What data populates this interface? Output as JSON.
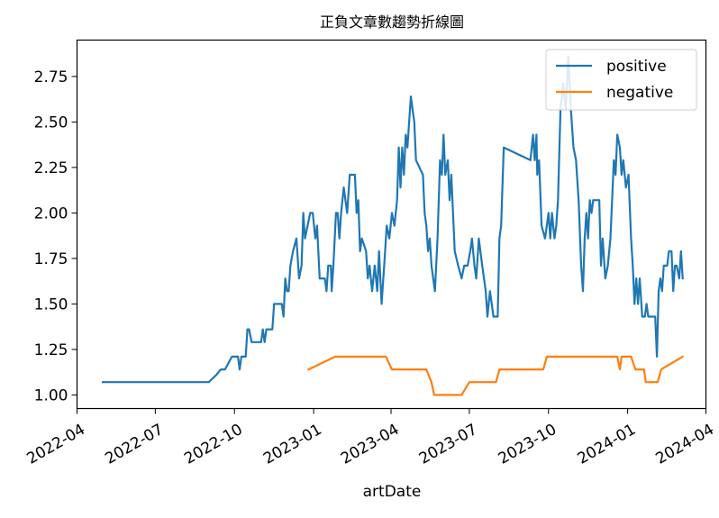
{
  "chart_data": {
    "type": "line",
    "title": "正負文章數趨勢折線圖",
    "xlabel": "artDate",
    "ylabel": "",
    "x_type": "date",
    "xlim": [
      "2022-04-01",
      "2024-04-01"
    ],
    "ylim": [
      0.925,
      2.95
    ],
    "x_ticks": [
      "2022-04-01",
      "2022-07-01",
      "2022-10-01",
      "2023-01-01",
      "2023-04-01",
      "2023-07-01",
      "2023-10-01",
      "2024-01-01",
      "2024-04-01"
    ],
    "x_tick_labels": [
      "2022-04",
      "2022-07",
      "2022-10",
      "2023-01",
      "2023-04",
      "2023-07",
      "2023-10",
      "2024-01",
      "2024-04"
    ],
    "y_ticks": [
      1.0,
      1.25,
      1.5,
      1.75,
      2.0,
      2.25,
      2.5,
      2.75
    ],
    "y_tick_labels": [
      "1.00",
      "1.25",
      "1.50",
      "1.75",
      "2.00",
      "2.25",
      "2.50",
      "2.75"
    ],
    "grid": false,
    "legend_position": "upper right",
    "series": [
      {
        "name": "positive",
        "color": "#1f77b4",
        "points": [
          [
            "2022-05-01",
            1.07
          ],
          [
            "2022-09-01",
            1.07
          ],
          [
            "2022-09-10",
            1.11
          ],
          [
            "2022-09-15",
            1.14
          ],
          [
            "2022-09-20",
            1.14
          ],
          [
            "2022-09-28",
            1.21
          ],
          [
            "2022-10-05",
            1.21
          ],
          [
            "2022-10-07",
            1.14
          ],
          [
            "2022-10-09",
            1.21
          ],
          [
            "2022-10-14",
            1.21
          ],
          [
            "2022-10-16",
            1.36
          ],
          [
            "2022-10-18",
            1.36
          ],
          [
            "2022-10-21",
            1.29
          ],
          [
            "2022-11-01",
            1.29
          ],
          [
            "2022-11-03",
            1.36
          ],
          [
            "2022-11-05",
            1.29
          ],
          [
            "2022-11-07",
            1.36
          ],
          [
            "2022-11-14",
            1.36
          ],
          [
            "2022-11-16",
            1.5
          ],
          [
            "2022-11-25",
            1.5
          ],
          [
            "2022-11-27",
            1.43
          ],
          [
            "2022-11-29",
            1.64
          ],
          [
            "2022-12-01",
            1.57
          ],
          [
            "2022-12-03",
            1.57
          ],
          [
            "2022-12-05",
            1.71
          ],
          [
            "2022-12-08",
            1.79
          ],
          [
            "2022-12-12",
            1.86
          ],
          [
            "2022-12-15",
            1.64
          ],
          [
            "2022-12-18",
            1.71
          ],
          [
            "2022-12-20",
            2.0
          ],
          [
            "2022-12-22",
            1.86
          ],
          [
            "2022-12-25",
            1.93
          ],
          [
            "2022-12-28",
            2.0
          ],
          [
            "2022-12-31",
            2.0
          ],
          [
            "2023-01-03",
            1.86
          ],
          [
            "2023-01-05",
            1.93
          ],
          [
            "2023-01-08",
            1.64
          ],
          [
            "2023-01-14",
            1.64
          ],
          [
            "2023-01-16",
            1.57
          ],
          [
            "2023-01-18",
            1.71
          ],
          [
            "2023-01-21",
            1.71
          ],
          [
            "2023-01-22",
            1.57
          ],
          [
            "2023-01-24",
            1.71
          ],
          [
            "2023-01-27",
            2.0
          ],
          [
            "2023-01-29",
            2.0
          ],
          [
            "2023-01-31",
            1.86
          ],
          [
            "2023-02-02",
            2.0
          ],
          [
            "2023-02-05",
            2.14
          ],
          [
            "2023-02-09",
            2.0
          ],
          [
            "2023-02-12",
            2.21
          ],
          [
            "2023-02-18",
            2.21
          ],
          [
            "2023-02-20",
            2.0
          ],
          [
            "2023-02-22",
            2.07
          ],
          [
            "2023-02-24",
            1.79
          ],
          [
            "2023-02-26",
            1.86
          ],
          [
            "2023-03-03",
            1.79
          ],
          [
            "2023-03-05",
            1.64
          ],
          [
            "2023-03-07",
            1.71
          ],
          [
            "2023-03-10",
            1.57
          ],
          [
            "2023-03-13",
            1.71
          ],
          [
            "2023-03-16",
            1.57
          ],
          [
            "2023-03-18",
            1.79
          ],
          [
            "2023-03-21",
            1.5
          ],
          [
            "2023-03-24",
            1.71
          ],
          [
            "2023-03-27",
            1.93
          ],
          [
            "2023-03-30",
            1.86
          ],
          [
            "2023-04-02",
            2.0
          ],
          [
            "2023-04-05",
            1.93
          ],
          [
            "2023-04-08",
            2.07
          ],
          [
            "2023-04-10",
            2.36
          ],
          [
            "2023-04-12",
            2.14
          ],
          [
            "2023-04-14",
            2.36
          ],
          [
            "2023-04-16",
            2.21
          ],
          [
            "2023-04-18",
            2.43
          ],
          [
            "2023-04-20",
            2.36
          ],
          [
            "2023-04-24",
            2.64
          ],
          [
            "2023-04-28",
            2.5
          ],
          [
            "2023-04-30",
            2.29
          ],
          [
            "2023-05-08",
            2.21
          ],
          [
            "2023-05-10",
            2.0
          ],
          [
            "2023-05-12",
            1.93
          ],
          [
            "2023-05-14",
            1.79
          ],
          [
            "2023-05-16",
            1.86
          ],
          [
            "2023-05-18",
            1.71
          ],
          [
            "2023-05-22",
            1.57
          ],
          [
            "2023-05-25",
            1.86
          ],
          [
            "2023-05-28",
            2.29
          ],
          [
            "2023-05-30",
            2.21
          ],
          [
            "2023-06-01",
            2.43
          ],
          [
            "2023-06-03",
            2.21
          ],
          [
            "2023-06-06",
            2.29
          ],
          [
            "2023-06-08",
            2.07
          ],
          [
            "2023-06-10",
            2.21
          ],
          [
            "2023-06-14",
            1.79
          ],
          [
            "2023-06-18",
            1.71
          ],
          [
            "2023-06-22",
            1.64
          ],
          [
            "2023-06-25",
            1.71
          ],
          [
            "2023-06-29",
            1.71
          ],
          [
            "2023-07-02",
            1.79
          ],
          [
            "2023-07-04",
            1.86
          ],
          [
            "2023-07-07",
            1.71
          ],
          [
            "2023-07-09",
            1.64
          ],
          [
            "2023-07-12",
            1.86
          ],
          [
            "2023-07-16",
            1.71
          ],
          [
            "2023-07-20",
            1.57
          ],
          [
            "2023-07-22",
            1.43
          ],
          [
            "2023-07-25",
            1.57
          ],
          [
            "2023-07-29",
            1.43
          ],
          [
            "2023-08-03",
            1.43
          ],
          [
            "2023-08-05",
            1.86
          ],
          [
            "2023-08-07",
            1.93
          ],
          [
            "2023-08-10",
            2.36
          ],
          [
            "2023-09-10",
            2.29
          ],
          [
            "2023-09-13",
            2.43
          ],
          [
            "2023-09-15",
            2.29
          ],
          [
            "2023-09-17",
            2.43
          ],
          [
            "2023-09-18",
            2.21
          ],
          [
            "2023-09-20",
            2.29
          ],
          [
            "2023-09-23",
            1.93
          ],
          [
            "2023-09-27",
            1.86
          ],
          [
            "2023-09-29",
            1.93
          ],
          [
            "2023-10-01",
            2.0
          ],
          [
            "2023-10-03",
            1.86
          ],
          [
            "2023-10-05",
            2.0
          ],
          [
            "2023-10-08",
            1.86
          ],
          [
            "2023-10-10",
            1.93
          ],
          [
            "2023-10-12",
            2.07
          ],
          [
            "2023-10-15",
            2.57
          ],
          [
            "2023-10-18",
            2.71
          ],
          [
            "2023-10-21",
            2.57
          ],
          [
            "2023-10-24",
            2.86
          ],
          [
            "2023-10-27",
            2.57
          ],
          [
            "2023-10-30",
            2.36
          ],
          [
            "2023-11-02",
            2.29
          ],
          [
            "2023-11-05",
            2.07
          ],
          [
            "2023-11-08",
            1.71
          ],
          [
            "2023-11-10",
            1.57
          ],
          [
            "2023-11-12",
            1.86
          ],
          [
            "2023-11-14",
            2.0
          ],
          [
            "2023-11-16",
            1.86
          ],
          [
            "2023-11-18",
            2.07
          ],
          [
            "2023-11-20",
            2.0
          ],
          [
            "2023-11-22",
            2.07
          ],
          [
            "2023-11-29",
            2.07
          ],
          [
            "2023-12-01",
            1.71
          ],
          [
            "2023-12-03",
            1.86
          ],
          [
            "2023-12-06",
            1.64
          ],
          [
            "2023-12-09",
            1.71
          ],
          [
            "2023-12-12",
            1.86
          ],
          [
            "2023-12-16",
            2.29
          ],
          [
            "2023-12-18",
            2.21
          ],
          [
            "2023-12-20",
            2.43
          ],
          [
            "2023-12-23",
            2.36
          ],
          [
            "2023-12-25",
            2.21
          ],
          [
            "2023-12-27",
            2.29
          ],
          [
            "2023-12-30",
            2.14
          ],
          [
            "2024-01-02",
            2.21
          ],
          [
            "2024-01-05",
            1.86
          ],
          [
            "2024-01-07",
            1.71
          ],
          [
            "2024-01-09",
            1.5
          ],
          [
            "2024-01-11",
            1.64
          ],
          [
            "2024-01-13",
            1.5
          ],
          [
            "2024-01-15",
            1.64
          ],
          [
            "2024-01-18",
            1.43
          ],
          [
            "2024-01-21",
            1.43
          ],
          [
            "2024-01-23",
            1.5
          ],
          [
            "2024-01-25",
            1.43
          ],
          [
            "2024-02-02",
            1.43
          ],
          [
            "2024-02-04",
            1.21
          ],
          [
            "2024-02-06",
            1.57
          ],
          [
            "2024-02-08",
            1.64
          ],
          [
            "2024-02-10",
            1.57
          ],
          [
            "2024-02-12",
            1.71
          ],
          [
            "2024-02-16",
            1.71
          ],
          [
            "2024-02-18",
            1.79
          ],
          [
            "2024-02-21",
            1.79
          ],
          [
            "2024-02-23",
            1.57
          ],
          [
            "2024-02-25",
            1.71
          ],
          [
            "2024-02-27",
            1.71
          ],
          [
            "2024-03-01",
            1.64
          ],
          [
            "2024-03-03",
            1.79
          ],
          [
            "2024-03-05",
            1.64
          ]
        ]
      },
      {
        "name": "negative",
        "color": "#ff7f0e",
        "points": [
          [
            "2022-12-26",
            1.14
          ],
          [
            "2023-01-26",
            1.21
          ],
          [
            "2023-03-26",
            1.21
          ],
          [
            "2023-04-02",
            1.14
          ],
          [
            "2023-05-12",
            1.14
          ],
          [
            "2023-05-18",
            1.07
          ],
          [
            "2023-05-21",
            1.0
          ],
          [
            "2023-06-22",
            1.0
          ],
          [
            "2023-07-01",
            1.07
          ],
          [
            "2023-08-01",
            1.07
          ],
          [
            "2023-08-05",
            1.14
          ],
          [
            "2023-09-25",
            1.14
          ],
          [
            "2023-09-29",
            1.21
          ],
          [
            "2023-12-20",
            1.21
          ],
          [
            "2023-12-23",
            1.14
          ],
          [
            "2023-12-25",
            1.21
          ],
          [
            "2024-01-05",
            1.21
          ],
          [
            "2024-01-10",
            1.14
          ],
          [
            "2024-01-20",
            1.14
          ],
          [
            "2024-01-22",
            1.07
          ],
          [
            "2024-02-05",
            1.07
          ],
          [
            "2024-02-09",
            1.14
          ],
          [
            "2024-03-05",
            1.21
          ]
        ]
      }
    ]
  }
}
